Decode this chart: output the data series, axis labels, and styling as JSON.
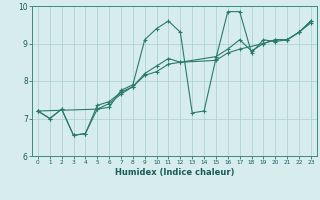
{
  "xlabel": "Humidex (Indice chaleur)",
  "bg_color": "#d7eded",
  "grid_color": "#aacccc",
  "line_color": "#2a7a6a",
  "xlim": [
    -0.5,
    23.5
  ],
  "ylim": [
    6,
    10
  ],
  "yticks": [
    6,
    7,
    8,
    9,
    10
  ],
  "xticks": [
    0,
    1,
    2,
    3,
    4,
    5,
    6,
    7,
    8,
    9,
    10,
    11,
    12,
    13,
    14,
    15,
    16,
    17,
    18,
    19,
    20,
    21,
    22,
    23
  ],
  "series1_x": [
    0,
    1,
    2,
    3,
    4,
    5,
    6,
    7,
    8,
    9,
    10,
    11,
    12,
    13,
    14,
    15,
    16,
    17,
    18,
    19,
    20,
    21,
    22,
    23
  ],
  "series1_y": [
    7.2,
    7.0,
    7.25,
    6.55,
    6.6,
    7.25,
    7.3,
    7.75,
    7.9,
    9.1,
    9.4,
    9.6,
    9.3,
    7.15,
    7.2,
    8.6,
    9.85,
    9.85,
    8.75,
    9.1,
    9.05,
    9.1,
    9.3,
    9.6
  ],
  "series2_x": [
    0,
    1,
    2,
    3,
    4,
    5,
    6,
    7,
    8,
    9,
    10,
    11,
    12,
    15,
    16,
    17,
    19,
    20,
    21,
    22,
    23
  ],
  "series2_y": [
    7.2,
    7.0,
    7.25,
    6.55,
    6.6,
    7.35,
    7.45,
    7.7,
    7.85,
    8.15,
    8.25,
    8.45,
    8.5,
    8.55,
    8.75,
    8.85,
    9.0,
    9.1,
    9.1,
    9.3,
    9.55
  ],
  "series3_x": [
    0,
    5,
    6,
    7,
    8,
    9,
    10,
    11,
    12,
    15,
    16,
    17,
    18,
    19,
    20,
    21,
    22,
    23
  ],
  "series3_y": [
    7.2,
    7.25,
    7.4,
    7.65,
    7.85,
    8.2,
    8.4,
    8.6,
    8.5,
    8.65,
    8.85,
    9.1,
    8.8,
    9.0,
    9.1,
    9.1,
    9.3,
    9.6
  ]
}
